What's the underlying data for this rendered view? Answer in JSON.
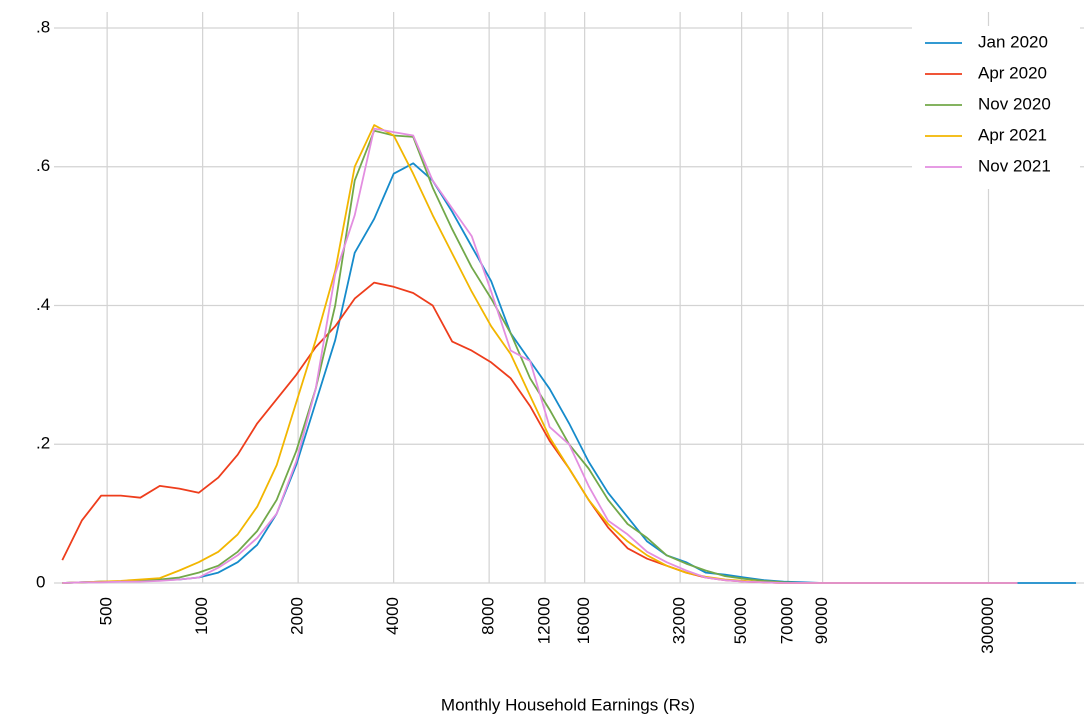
{
  "chart_data": {
    "type": "line",
    "xlabel": "Monthly Household Earnings (Rs)",
    "xscale": "log",
    "grid": true,
    "legend": "upper right",
    "xlim": [
      340,
      600000
    ],
    "ylim": [
      0,
      0.8
    ],
    "xticks": [
      500,
      1000,
      2000,
      4000,
      8000,
      12000,
      16000,
      32000,
      50000,
      70000,
      90000,
      300000
    ],
    "yticks": [
      0,
      {
        "value": 0.2,
        "label": ".2"
      },
      {
        "value": 0.4,
        "label": ".4"
      },
      {
        "value": 0.6,
        "label": ".6"
      },
      {
        "value": 0.8,
        "label": ".8"
      }
    ],
    "x": [
      361,
      416,
      479,
      552,
      636,
      733,
      844,
      972,
      1120,
      1290,
      1486,
      1712,
      1972,
      2272,
      2617,
      3015,
      3473,
      4001,
      4609,
      5310,
      6117,
      7047,
      8118,
      9352,
      10773,
      12410,
      14297,
      16470,
      18973,
      21857,
      25179,
      29006,
      33415,
      38494,
      44345,
      51086,
      58850,
      67796,
      78101,
      89972,
      103648,
      119402,
      137551,
      158458,
      182544,
      210290,
      242254,
      279077,
      321496,
      370362,
      426658,
      491510,
      566220
    ],
    "series": [
      {
        "name": "Jan 2020",
        "color": "#168bcb",
        "values": [
          0,
          0.001,
          0.002,
          0.002,
          0.003,
          0.004,
          0.005,
          0.008,
          0.015,
          0.03,
          0.055,
          0.1,
          0.17,
          0.26,
          0.35,
          0.476,
          0.525,
          0.59,
          0.605,
          0.58,
          0.535,
          0.485,
          0.435,
          0.36,
          0.32,
          0.28,
          0.23,
          0.175,
          0.13,
          0.095,
          0.06,
          0.04,
          0.03,
          0.015,
          0.012,
          0.008,
          0.004,
          0.002,
          0.001,
          0,
          0,
          0,
          0,
          0,
          0,
          0,
          0,
          0,
          0,
          0,
          0,
          0,
          0
        ]
      },
      {
        "name": "Apr 2020",
        "color": "#ee3d1c",
        "values": [
          0.033,
          0.09,
          0.126,
          0.126,
          0.123,
          0.14,
          0.136,
          0.13,
          0.152,
          0.185,
          0.23,
          0.265,
          0.3,
          0.34,
          0.37,
          0.41,
          0.433,
          0.427,
          0.418,
          0.4,
          0.348,
          0.335,
          0.318,
          0.295,
          0.255,
          0.205,
          0.165,
          0.12,
          0.08,
          0.05,
          0.035,
          0.025,
          0.015,
          0.008,
          0.004,
          0.002,
          0.001,
          0,
          0,
          0,
          0,
          0,
          0,
          0,
          0,
          0,
          0,
          0,
          0,
          0,
          null,
          null,
          null
        ]
      },
      {
        "name": "Nov 2020",
        "color": "#72a84a",
        "values": [
          0,
          0.001,
          0.002,
          0.002,
          0.003,
          0.005,
          0.008,
          0.015,
          0.025,
          0.045,
          0.075,
          0.12,
          0.19,
          0.28,
          0.4,
          0.58,
          0.652,
          0.645,
          0.643,
          0.57,
          0.51,
          0.455,
          0.41,
          0.36,
          0.295,
          0.25,
          0.2,
          0.165,
          0.12,
          0.085,
          0.065,
          0.04,
          0.028,
          0.018,
          0.01,
          0.006,
          0.003,
          0.001,
          0,
          0,
          0,
          0,
          0,
          0,
          0,
          0,
          0,
          0,
          0,
          0,
          null,
          null,
          null
        ]
      },
      {
        "name": "Apr 2021",
        "color": "#f2b600",
        "values": [
          0,
          0.001,
          0.002,
          0.003,
          0.005,
          0.007,
          0.018,
          0.03,
          0.045,
          0.07,
          0.11,
          0.17,
          0.26,
          0.35,
          0.45,
          0.6,
          0.66,
          0.645,
          0.59,
          0.53,
          0.475,
          0.42,
          0.37,
          0.33,
          0.27,
          0.21,
          0.165,
          0.12,
          0.085,
          0.06,
          0.04,
          0.025,
          0.015,
          0.009,
          0.005,
          0.003,
          0.001,
          0,
          0,
          0,
          0,
          0,
          0,
          0,
          0,
          0,
          0,
          0,
          0,
          0,
          null,
          null,
          null
        ]
      },
      {
        "name": "Nov 2021",
        "color": "#e38ee0",
        "values": [
          0,
          0.001,
          0.001,
          0.002,
          0.002,
          0.003,
          0.005,
          0.008,
          0.022,
          0.04,
          0.065,
          0.1,
          0.175,
          0.28,
          0.445,
          0.53,
          0.655,
          0.65,
          0.645,
          0.58,
          0.54,
          0.5,
          0.42,
          0.335,
          0.32,
          0.225,
          0.2,
          0.14,
          0.09,
          0.07,
          0.045,
          0.03,
          0.018,
          0.008,
          0.004,
          0.002,
          0.001,
          0,
          0,
          0,
          0,
          0,
          0,
          0,
          0,
          0,
          0,
          0,
          0,
          0,
          null,
          null,
          null
        ]
      }
    ]
  }
}
